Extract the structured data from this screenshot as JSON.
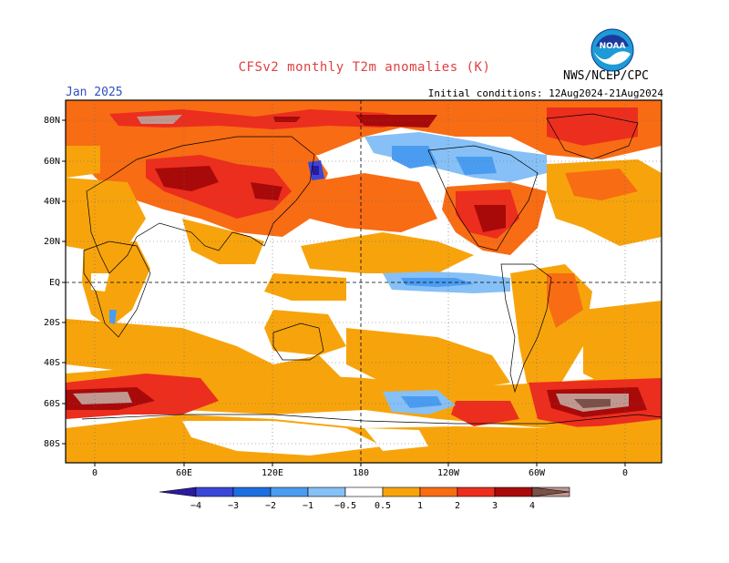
{
  "map": {
    "title": "CFSv2 monthly T2m anomalies (K)",
    "forecast_month": "Jan 2025",
    "initial_conditions": "Initial conditions: 12Aug2024-21Aug2024",
    "agency": "NWS/NCEP/CPC",
    "logo_text": "NOAA",
    "lat_labels": [
      "80N",
      "60N",
      "40N",
      "20N",
      "EQ",
      "20S",
      "40S",
      "60S",
      "80S"
    ],
    "lon_labels": [
      "0",
      "60E",
      "120E",
      "180",
      "120W",
      "60W",
      "0"
    ],
    "colors": {
      "neg4": "#2a1a9e",
      "neg3": "#3a46d6",
      "neg2": "#1f6ee0",
      "neg1": "#4a9cf0",
      "neg05": "#86c0f6",
      "neutral": "#ffffff",
      "pos05": "#f7a40c",
      "pos1": "#f86c14",
      "pos2": "#ec2e1e",
      "pos3": "#a80a0a",
      "pos4": "#c09890",
      "pos5": "#7a5048"
    }
  },
  "colorbar": {
    "tick_labels": [
      "−4",
      "−3",
      "−2",
      "−1",
      "−0.5",
      "0.5",
      "1",
      "2",
      "3",
      "4"
    ]
  }
}
